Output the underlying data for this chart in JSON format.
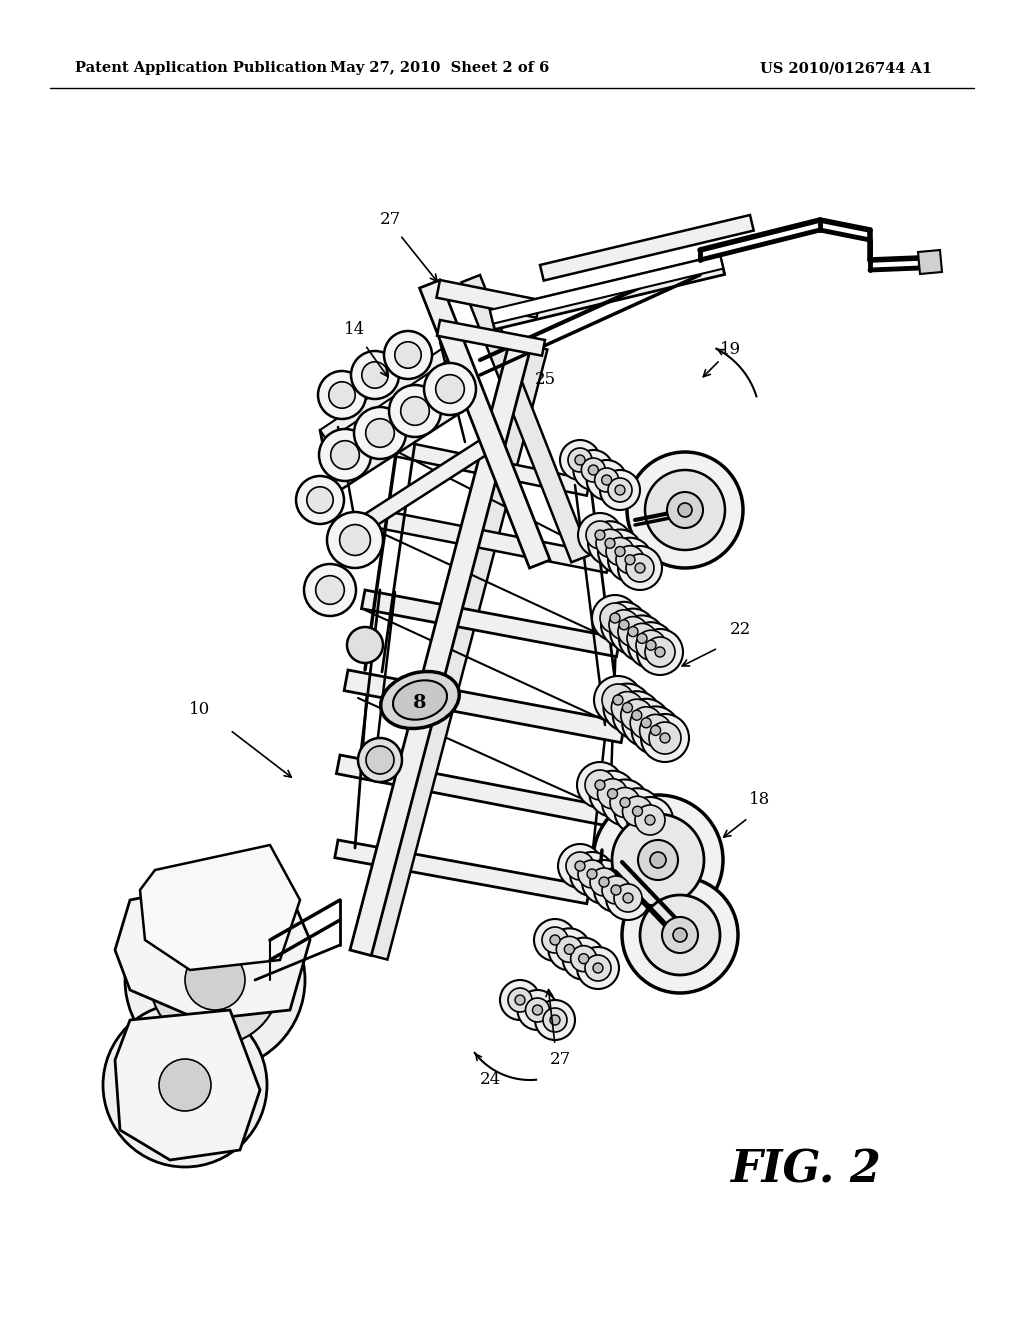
{
  "bg_color": "#ffffff",
  "header_left": "Patent Application Publication",
  "header_mid": "May 27, 2010  Sheet 2 of 6",
  "header_right": "US 2010/0126744 A1",
  "fig_label": "FIG. 2",
  "header_fontsize": 10.5,
  "label_fontsize": 12
}
